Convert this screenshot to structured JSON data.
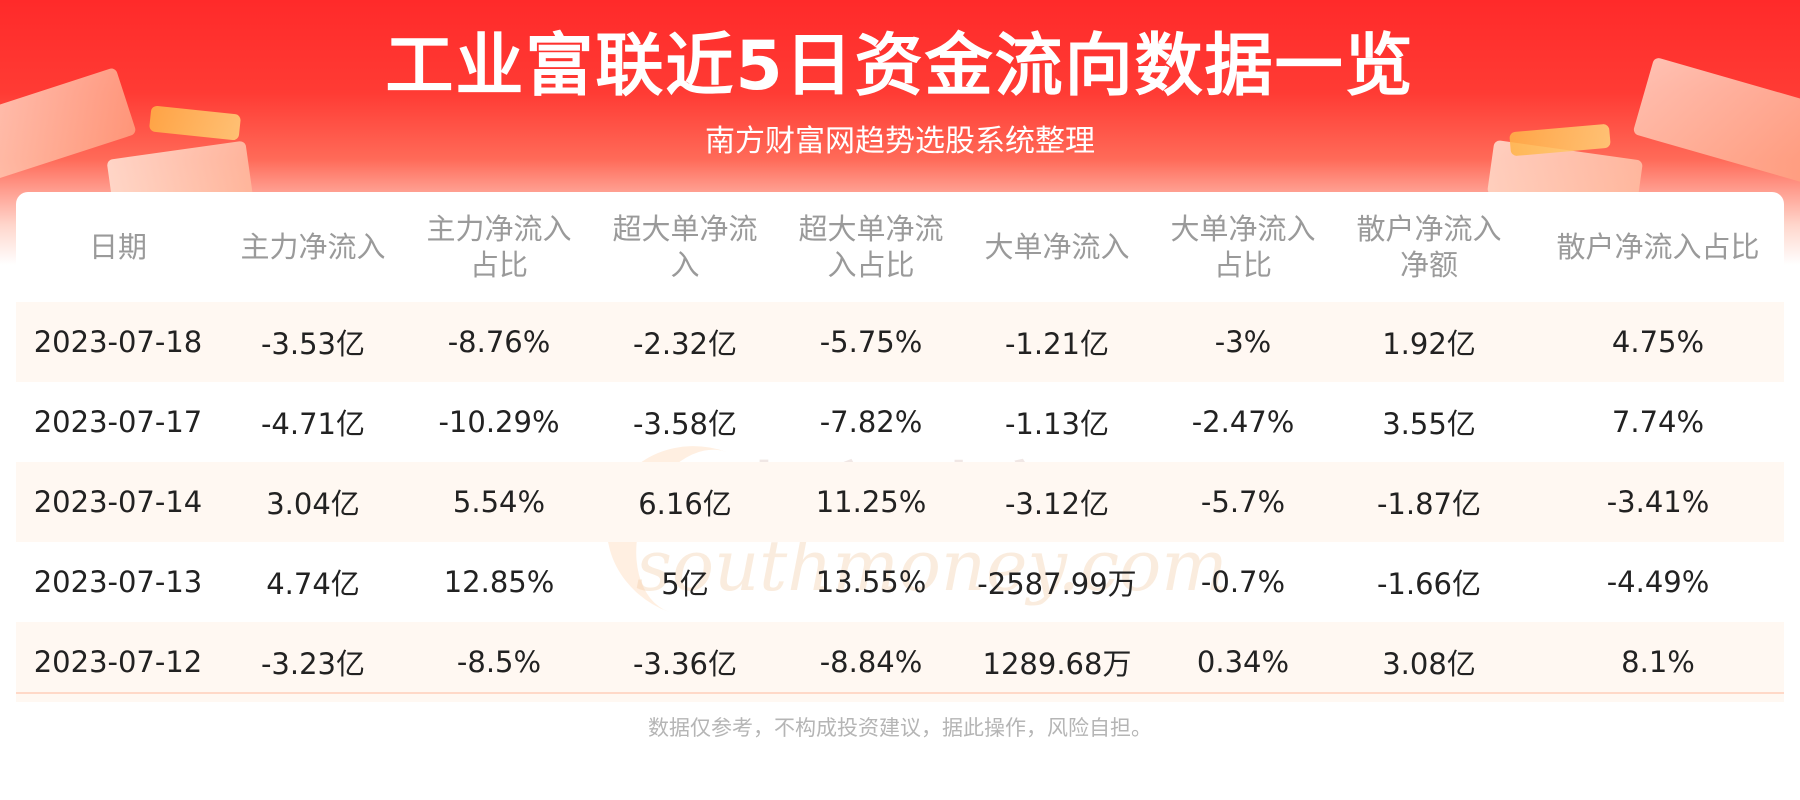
{
  "header": {
    "title": "工业富联近5日资金流向数据一览",
    "subtitle": "南方财富网趋势选股系统整理"
  },
  "watermark": {
    "cn": "南方财富网",
    "en": "southmoney.com"
  },
  "chart_data": {
    "type": "table",
    "columns": [
      "日期",
      "主力净流入",
      "主力净流入占比",
      "超大单净流入",
      "超大单净流入占比",
      "大单净流入",
      "大单净流入占比",
      "散户净流入净额",
      "散户净流入占比"
    ],
    "rows": [
      [
        "2023-07-18",
        "-3.53亿",
        "-8.76%",
        "-2.32亿",
        "-5.75%",
        "-1.21亿",
        "-3%",
        "1.92亿",
        "4.75%"
      ],
      [
        "2023-07-17",
        "-4.71亿",
        "-10.29%",
        "-3.58亿",
        "-7.82%",
        "-1.13亿",
        "-2.47%",
        "3.55亿",
        "7.74%"
      ],
      [
        "2023-07-14",
        "3.04亿",
        "5.54%",
        "6.16亿",
        "11.25%",
        "-3.12亿",
        "-5.7%",
        "-1.87亿",
        "-3.41%"
      ],
      [
        "2023-07-13",
        "4.74亿",
        "12.85%",
        "5亿",
        "13.55%",
        "-2587.99万",
        "-0.7%",
        "-1.66亿",
        "-4.49%"
      ],
      [
        "2023-07-12",
        "-3.23亿",
        "-8.5%",
        "-3.36亿",
        "-8.84%",
        "1289.68万",
        "0.34%",
        "3.08亿",
        "8.1%"
      ]
    ]
  },
  "footer": {
    "disclaimer": "数据仅参考，不构成投资建议，据此操作，风险自担。"
  }
}
